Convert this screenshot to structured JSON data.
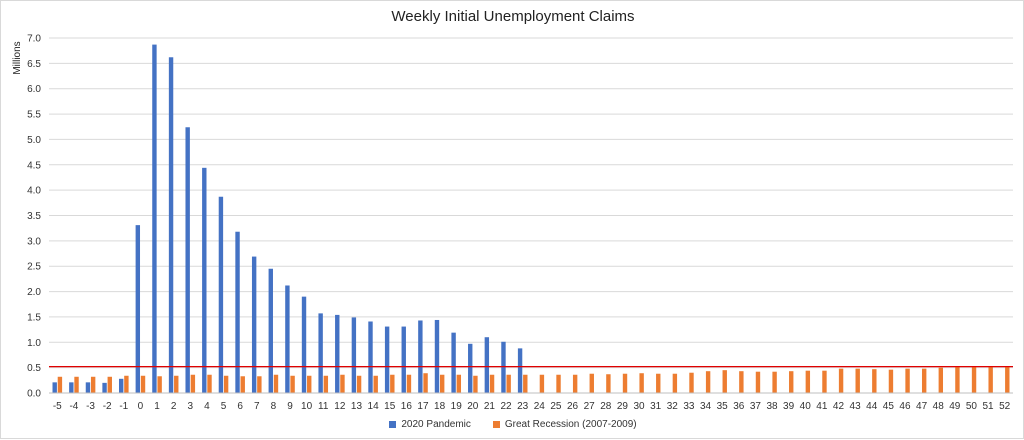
{
  "chart_data": {
    "type": "bar",
    "title": "Weekly Initial Unemployment Claims",
    "ylabel": "Millions",
    "xlabel": "",
    "ylim": [
      0,
      7.0
    ],
    "yticks": [
      "0.0",
      "0.5",
      "1.0",
      "1.5",
      "2.0",
      "2.5",
      "3.0",
      "3.5",
      "4.0",
      "4.5",
      "5.0",
      "5.5",
      "6.0",
      "6.5",
      "7.0"
    ],
    "grid": true,
    "legend_position": "bottom",
    "reference_line": {
      "value": 0.52,
      "color": "#e00000"
    },
    "categories": [
      "-5",
      "-4",
      "-3",
      "-2",
      "-1",
      "0",
      "1",
      "2",
      "3",
      "4",
      "5",
      "6",
      "7",
      "8",
      "9",
      "10",
      "11",
      "12",
      "13",
      "14",
      "15",
      "16",
      "17",
      "18",
      "19",
      "20",
      "21",
      "22",
      "23",
      "24",
      "25",
      "26",
      "27",
      "28",
      "29",
      "30",
      "31",
      "32",
      "33",
      "34",
      "35",
      "36",
      "37",
      "38",
      "39",
      "40",
      "41",
      "42",
      "43",
      "44",
      "45",
      "46",
      "47",
      "48",
      "49",
      "50",
      "51",
      "52"
    ],
    "series": [
      {
        "name": "2020 Pandemic",
        "color": "#4472c4",
        "values": [
          0.21,
          0.21,
          0.21,
          0.2,
          0.28,
          3.31,
          6.87,
          6.62,
          5.24,
          4.44,
          3.87,
          3.18,
          2.69,
          2.45,
          2.12,
          1.9,
          1.57,
          1.54,
          1.49,
          1.41,
          1.31,
          1.31,
          1.43,
          1.44,
          1.19,
          0.97,
          1.1,
          1.01,
          0.88,
          null,
          null,
          null,
          null,
          null,
          null,
          null,
          null,
          null,
          null,
          null,
          null,
          null,
          null,
          null,
          null,
          null,
          null,
          null,
          null,
          null,
          null,
          null,
          null,
          null,
          null,
          null,
          null,
          null
        ]
      },
      {
        "name": "Great Recession (2007-2009)",
        "color": "#ed7d31",
        "values": [
          0.32,
          0.32,
          0.32,
          0.32,
          0.34,
          0.34,
          0.33,
          0.34,
          0.36,
          0.36,
          0.34,
          0.33,
          0.33,
          0.36,
          0.34,
          0.34,
          0.34,
          0.36,
          0.34,
          0.34,
          0.36,
          0.36,
          0.39,
          0.36,
          0.36,
          0.34,
          0.36,
          0.36,
          0.36,
          0.36,
          0.36,
          0.36,
          0.38,
          0.37,
          0.38,
          0.39,
          0.38,
          0.38,
          0.4,
          0.43,
          0.45,
          0.43,
          0.42,
          0.42,
          0.43,
          0.44,
          0.44,
          0.48,
          0.48,
          0.47,
          0.46,
          0.48,
          0.48,
          0.5,
          0.53,
          0.53,
          0.53,
          0.53
        ]
      }
    ]
  }
}
